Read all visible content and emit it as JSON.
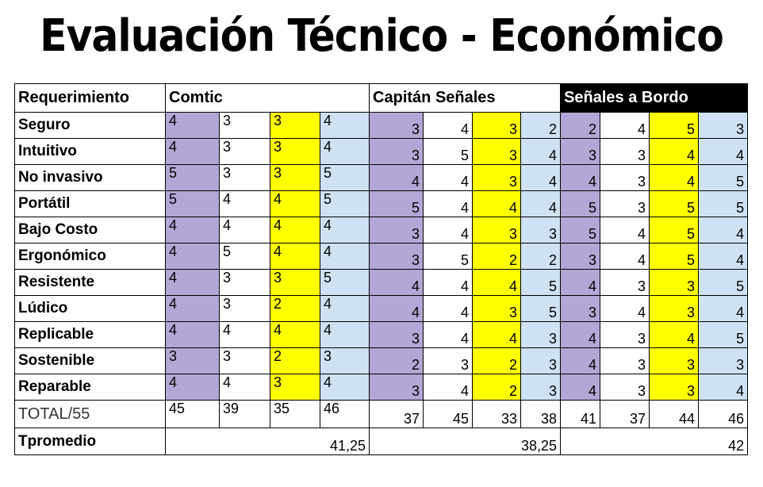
{
  "title": "Evaluación Técnico - Económico",
  "header": {
    "requirement_label": "Requerimiento",
    "groups": [
      "Comtic",
      "Capitán Señales",
      "Señales a Bordo"
    ]
  },
  "rows": [
    {
      "label": "Seguro",
      "values": [
        "4",
        "3",
        "3",
        "4",
        "3",
        "4",
        "3",
        "2",
        "2",
        "4",
        "5",
        "3"
      ]
    },
    {
      "label": "Intuitivo",
      "values": [
        "4",
        "3",
        "3",
        "4",
        "3",
        "5",
        "3",
        "4",
        "3",
        "3",
        "4",
        "4"
      ]
    },
    {
      "label": "No invasivo",
      "values": [
        "5",
        "3",
        "3",
        "5",
        "4",
        "4",
        "3",
        "4",
        "4",
        "3",
        "4",
        "5"
      ]
    },
    {
      "label": "Portátil",
      "values": [
        "5",
        "4",
        "4",
        "5",
        "5",
        "4",
        "4",
        "4",
        "5",
        "3",
        "5",
        "5"
      ]
    },
    {
      "label": "Bajo Costo",
      "values": [
        "4",
        "4",
        "4",
        "4",
        "3",
        "4",
        "3",
        "3",
        "5",
        "4",
        "5",
        "4"
      ]
    },
    {
      "label": "Ergonómico",
      "values": [
        "4",
        "5",
        "4",
        "4",
        "3",
        "5",
        "2",
        "2",
        "3",
        "4",
        "5",
        "4"
      ]
    },
    {
      "label": "Resistente",
      "values": [
        "4",
        "3",
        "3",
        "5",
        "4",
        "4",
        "4",
        "5",
        "4",
        "3",
        "3",
        "5"
      ]
    },
    {
      "label": "Lúdico",
      "values": [
        "4",
        "3",
        "2",
        "4",
        "4",
        "4",
        "3",
        "5",
        "3",
        "4",
        "3",
        "4"
      ]
    },
    {
      "label": "Replicable",
      "values": [
        "4",
        "4",
        "4",
        "4",
        "3",
        "4",
        "4",
        "3",
        "4",
        "3",
        "4",
        "5"
      ]
    },
    {
      "label": "Sostenible",
      "values": [
        "3",
        "3",
        "2",
        "3",
        "2",
        "3",
        "2",
        "3",
        "4",
        "3",
        "3",
        "3"
      ]
    },
    {
      "label": "Reparable",
      "values": [
        "4",
        "4",
        "3",
        "4",
        "3",
        "4",
        "2",
        "3",
        "4",
        "3",
        "3",
        "4"
      ]
    }
  ],
  "total": {
    "label": "TOTAL/55",
    "values": [
      "45",
      "39",
      "35",
      "46",
      "37",
      "45",
      "33",
      "38",
      "41",
      "37",
      "44",
      "46"
    ]
  },
  "average": {
    "label": "Tpromedio",
    "values": [
      "41,25",
      "38,25",
      "42"
    ]
  },
  "colors": {
    "purple": "#b4a7d6",
    "yellow": "#ffff00",
    "light_blue": "#cfe2f3",
    "header_dark": "#000000"
  }
}
